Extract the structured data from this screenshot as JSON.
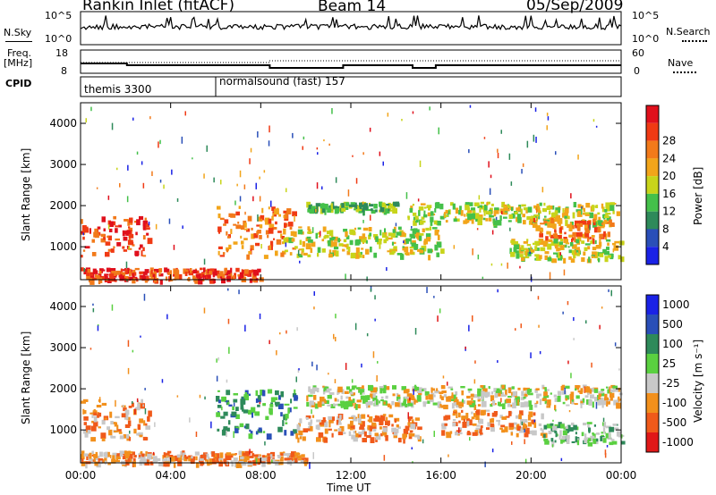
{
  "header": {
    "title": "Rankin Inlet (fitACF)",
    "beam": "Beam 14",
    "date": "05/Sep/2009"
  },
  "strips": {
    "nsky_label": "N.Sky",
    "nsky_ticks": [
      "10^5",
      "10^0"
    ],
    "nsearch_ticks": [
      "10^5",
      "10^0"
    ],
    "nsearch_label": "N.Search",
    "freq_label_1": "Freq.",
    "freq_label_2": "[MHz]",
    "freq_ticks": [
      "18",
      "8"
    ],
    "nave_ticks": [
      "60",
      "0"
    ],
    "nave_label": "Nave",
    "cpid_label": "CPID",
    "cpid_1": "themis 3300",
    "cpid_2": "normalsound (fast) 157"
  },
  "colors": {
    "power": [
      "#1a22e6",
      "#2a4fb8",
      "#2e8a5a",
      "#44c04a",
      "#c8d41a",
      "#f2a51a",
      "#f27a1a",
      "#f03a14",
      "#e0101c"
    ],
    "velocity": [
      "#e01818",
      "#f05a1a",
      "#f2901c",
      "#c8c8c8",
      "#5ad040",
      "#2e8a5a",
      "#2a4fb8",
      "#1a22e6"
    ]
  },
  "chart_data": [
    {
      "type": "heatmap",
      "title": "",
      "xlabel": "",
      "ylabel": "Slant Range [km]",
      "xlim": [
        "00:00",
        "24:00"
      ],
      "ylim": [
        200,
        4500
      ],
      "yticks": [
        "1000",
        "2000",
        "3000",
        "4000"
      ],
      "colorbar_label": "Power [dB]",
      "colorbar_ticks": [
        "4",
        "8",
        "12",
        "16",
        "20",
        "24",
        "28"
      ],
      "regions": [
        {
          "t0": 0.0,
          "t1": 3.0,
          "r0": 800,
          "r1": 1750,
          "level": 7
        },
        {
          "t0": 6.0,
          "t1": 9.5,
          "r0": 800,
          "r1": 2000,
          "level": 6
        },
        {
          "t0": 10.0,
          "t1": 14.0,
          "r0": 1900,
          "r1": 2100,
          "level": 3
        },
        {
          "t0": 9.0,
          "t1": 16.0,
          "r0": 800,
          "r1": 1500,
          "level": 4
        },
        {
          "t0": 14.5,
          "t1": 23.8,
          "r0": 1600,
          "r1": 2100,
          "level": 4
        },
        {
          "t0": 20.0,
          "t1": 23.5,
          "r0": 1200,
          "r1": 1700,
          "level": 6
        },
        {
          "t0": 19.0,
          "t1": 24.0,
          "r0": 700,
          "r1": 1200,
          "level": 4
        },
        {
          "t0": 0.0,
          "t1": 8.0,
          "r0": 200,
          "r1": 500,
          "level": 7
        }
      ]
    },
    {
      "type": "heatmap",
      "title": "",
      "xlabel": "Time UT",
      "ylabel": "Slant Range [km]",
      "xlim": [
        "00:00",
        "24:00"
      ],
      "ylim": [
        200,
        4500
      ],
      "xticks": [
        "00:00",
        "04:00",
        "08:00",
        "12:00",
        "16:00",
        "20:00",
        "00:00"
      ],
      "yticks": [
        "1000",
        "2000",
        "3000",
        "4000"
      ],
      "colorbar_label": "Velocity [m s⁻¹]",
      "colorbar_ticks": [
        "1000",
        "500",
        "100",
        "25",
        "-25",
        "-100",
        "-500",
        "-1000"
      ],
      "regions": [
        {
          "t0": 0.0,
          "t1": 3.0,
          "r0": 800,
          "r1": 1750,
          "level": 2
        },
        {
          "t0": 6.0,
          "t1": 9.5,
          "r0": 900,
          "r1": 2000,
          "level": 5
        },
        {
          "t0": 10.0,
          "t1": 24.0,
          "r0": 1600,
          "r1": 2100,
          "level": 3
        },
        {
          "t0": 9.5,
          "t1": 15.0,
          "r0": 800,
          "r1": 1400,
          "level": 2
        },
        {
          "t0": 16.0,
          "t1": 20.5,
          "r0": 900,
          "r1": 1500,
          "level": 2
        },
        {
          "t0": 20.5,
          "t1": 24.0,
          "r0": 700,
          "r1": 1200,
          "level": 4
        },
        {
          "t0": 0.0,
          "t1": 10.0,
          "r0": 200,
          "r1": 500,
          "level": 2
        }
      ]
    }
  ]
}
